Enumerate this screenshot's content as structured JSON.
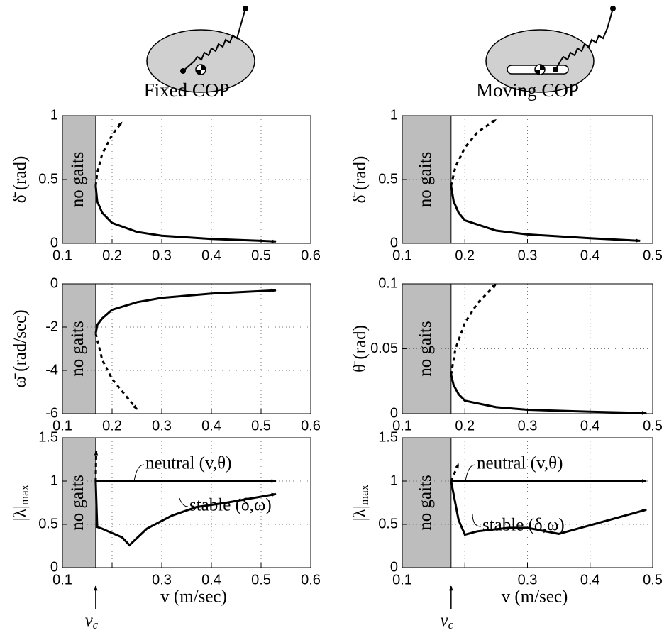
{
  "chart_data": [
    {
      "type": "line",
      "title": "Fixed COP",
      "ylabel": "δ̄ (rad)",
      "xlim": [
        0.1,
        0.6
      ],
      "xticks": [
        0.1,
        0.2,
        0.3,
        0.4,
        0.5,
        0.6
      ],
      "ylim": [
        0,
        1
      ],
      "yticks": [
        0,
        0.5,
        1
      ],
      "grid": true,
      "shaded": {
        "x": [
          0.1,
          0.167
        ],
        "label": "no gaits"
      },
      "series": [
        {
          "color": "#000000",
          "dashed": false,
          "x": [
            0.167,
            0.17,
            0.18,
            0.2,
            0.25,
            0.3,
            0.4,
            0.5,
            0.53
          ],
          "values": [
            0.45,
            0.33,
            0.24,
            0.16,
            0.09,
            0.06,
            0.035,
            0.02,
            0.015
          ]
        },
        {
          "color": "#000000",
          "dashed": true,
          "x": [
            0.167,
            0.17,
            0.18,
            0.2,
            0.22
          ],
          "values": [
            0.45,
            0.55,
            0.7,
            0.85,
            0.95
          ]
        }
      ]
    },
    {
      "type": "line",
      "title": "Moving COP",
      "ylabel": "δ̄ (rad)",
      "xlim": [
        0.1,
        0.5
      ],
      "xticks": [
        0.1,
        0.2,
        0.3,
        0.4,
        0.5
      ],
      "ylim": [
        0,
        1
      ],
      "yticks": [
        0,
        0.5,
        1
      ],
      "grid": true,
      "shaded": {
        "x": [
          0.1,
          0.178
        ],
        "label": "no gaits"
      },
      "series": [
        {
          "color": "#000000",
          "dashed": false,
          "x": [
            0.178,
            0.182,
            0.19,
            0.2,
            0.25,
            0.3,
            0.4,
            0.48
          ],
          "values": [
            0.45,
            0.33,
            0.24,
            0.18,
            0.1,
            0.07,
            0.04,
            0.02
          ]
        },
        {
          "color": "#000000",
          "dashed": true,
          "x": [
            0.178,
            0.185,
            0.2,
            0.22,
            0.25
          ],
          "values": [
            0.45,
            0.6,
            0.75,
            0.87,
            0.97
          ]
        }
      ]
    },
    {
      "type": "line",
      "ylabel": "ω̄ (rad/sec)",
      "xlim": [
        0.1,
        0.6
      ],
      "xticks": [
        0.1,
        0.2,
        0.3,
        0.4,
        0.5,
        0.6
      ],
      "ylim": [
        -6,
        0
      ],
      "yticks": [
        -6,
        -4,
        -2,
        0
      ],
      "grid": true,
      "shaded": {
        "x": [
          0.1,
          0.167
        ],
        "label": "no gaits"
      },
      "series": [
        {
          "color": "#000000",
          "dashed": false,
          "x": [
            0.167,
            0.17,
            0.18,
            0.2,
            0.25,
            0.3,
            0.4,
            0.53
          ],
          "values": [
            -2.3,
            -1.9,
            -1.6,
            -1.2,
            -0.85,
            -0.65,
            -0.45,
            -0.3
          ]
        },
        {
          "color": "#000000",
          "dashed": true,
          "x": [
            0.167,
            0.18,
            0.2,
            0.25
          ],
          "values": [
            -2.3,
            -3.5,
            -4.4,
            -5.8
          ]
        }
      ]
    },
    {
      "type": "line",
      "ylabel": "θ̄ (rad)",
      "xlim": [
        0.1,
        0.5
      ],
      "xticks": [
        0.1,
        0.2,
        0.3,
        0.4,
        0.5
      ],
      "ylim": [
        0,
        0.1
      ],
      "yticks": [
        0,
        0.05,
        0.1
      ],
      "grid": true,
      "shaded": {
        "x": [
          0.1,
          0.178
        ],
        "label": "no gaits"
      },
      "series": [
        {
          "color": "#000000",
          "dashed": false,
          "x": [
            0.178,
            0.182,
            0.19,
            0.2,
            0.25,
            0.3,
            0.4,
            0.49
          ],
          "values": [
            0.03,
            0.022,
            0.015,
            0.01,
            0.005,
            0.003,
            0.0015,
            0.0005
          ]
        },
        {
          "color": "#000000",
          "dashed": true,
          "x": [
            0.178,
            0.185,
            0.2,
            0.22,
            0.25
          ],
          "values": [
            0.03,
            0.05,
            0.07,
            0.085,
            0.1
          ]
        }
      ]
    },
    {
      "type": "line",
      "ylabel": "|λ|",
      "ylabel_sub": "max",
      "xlabel": "v (m/sec)",
      "xlim": [
        0.1,
        0.6
      ],
      "xticks": [
        0.1,
        {
          "value": 0.2,
          "label": null
        },
        0.3,
        0.4,
        0.5,
        0.6
      ],
      "ylim": [
        0,
        1.5
      ],
      "yticks": [
        0,
        0.5,
        1,
        1.5
      ],
      "grid": true,
      "shaded": {
        "x": [
          0.1,
          0.167
        ],
        "label": "no gaits"
      },
      "critical_label": "v",
      "critical_label_sub": "c",
      "annotations": [
        "neutral (v,θ)",
        "stable (δ,ω)"
      ],
      "series": [
        {
          "color": "#000000",
          "dashed": false,
          "x": [
            0.167,
            0.53
          ],
          "values": [
            1,
            1
          ]
        },
        {
          "color": "#000000",
          "dashed": false,
          "x": [
            0.167,
            0.17,
            0.18,
            0.2,
            0.22,
            0.235,
            0.27,
            0.32,
            0.37,
            0.43,
            0.53
          ],
          "values": [
            1,
            0.47,
            0.45,
            0.4,
            0.35,
            0.26,
            0.45,
            0.6,
            0.7,
            0.75,
            0.85
          ]
        },
        {
          "color": "#000000",
          "dashed": true,
          "x": [
            0.167,
            0.168
          ],
          "values": [
            1,
            1.35
          ]
        }
      ]
    },
    {
      "type": "line",
      "ylabel": "|λ|",
      "ylabel_sub": "max",
      "xlabel": "v (m/sec)",
      "xlim": [
        0.1,
        0.5
      ],
      "xticks": [
        0.1,
        {
          "value": 0.2,
          "label": null
        },
        0.3,
        0.4,
        0.5
      ],
      "ylim": [
        0,
        1.5
      ],
      "yticks": [
        0,
        0.5,
        1,
        1.5
      ],
      "grid": true,
      "shaded": {
        "x": [
          0.1,
          0.178
        ],
        "label": "no gaits"
      },
      "critical_label": "v",
      "critical_label_sub": "c",
      "annotations": [
        "neutral (v,θ)",
        "stable (δ,ω)"
      ],
      "series": [
        {
          "color": "#000000",
          "dashed": false,
          "x": [
            0.178,
            0.49
          ],
          "values": [
            1,
            1
          ]
        },
        {
          "color": "#000000",
          "dashed": false,
          "x": [
            0.178,
            0.19,
            0.2,
            0.22,
            0.27,
            0.3,
            0.35,
            0.49
          ],
          "values": [
            1,
            0.55,
            0.38,
            0.42,
            0.46,
            0.46,
            0.39,
            0.67
          ]
        },
        {
          "color": "#000000",
          "dashed": true,
          "x": [
            0.178,
            0.19
          ],
          "values": [
            1,
            1.2
          ]
        }
      ]
    }
  ]
}
